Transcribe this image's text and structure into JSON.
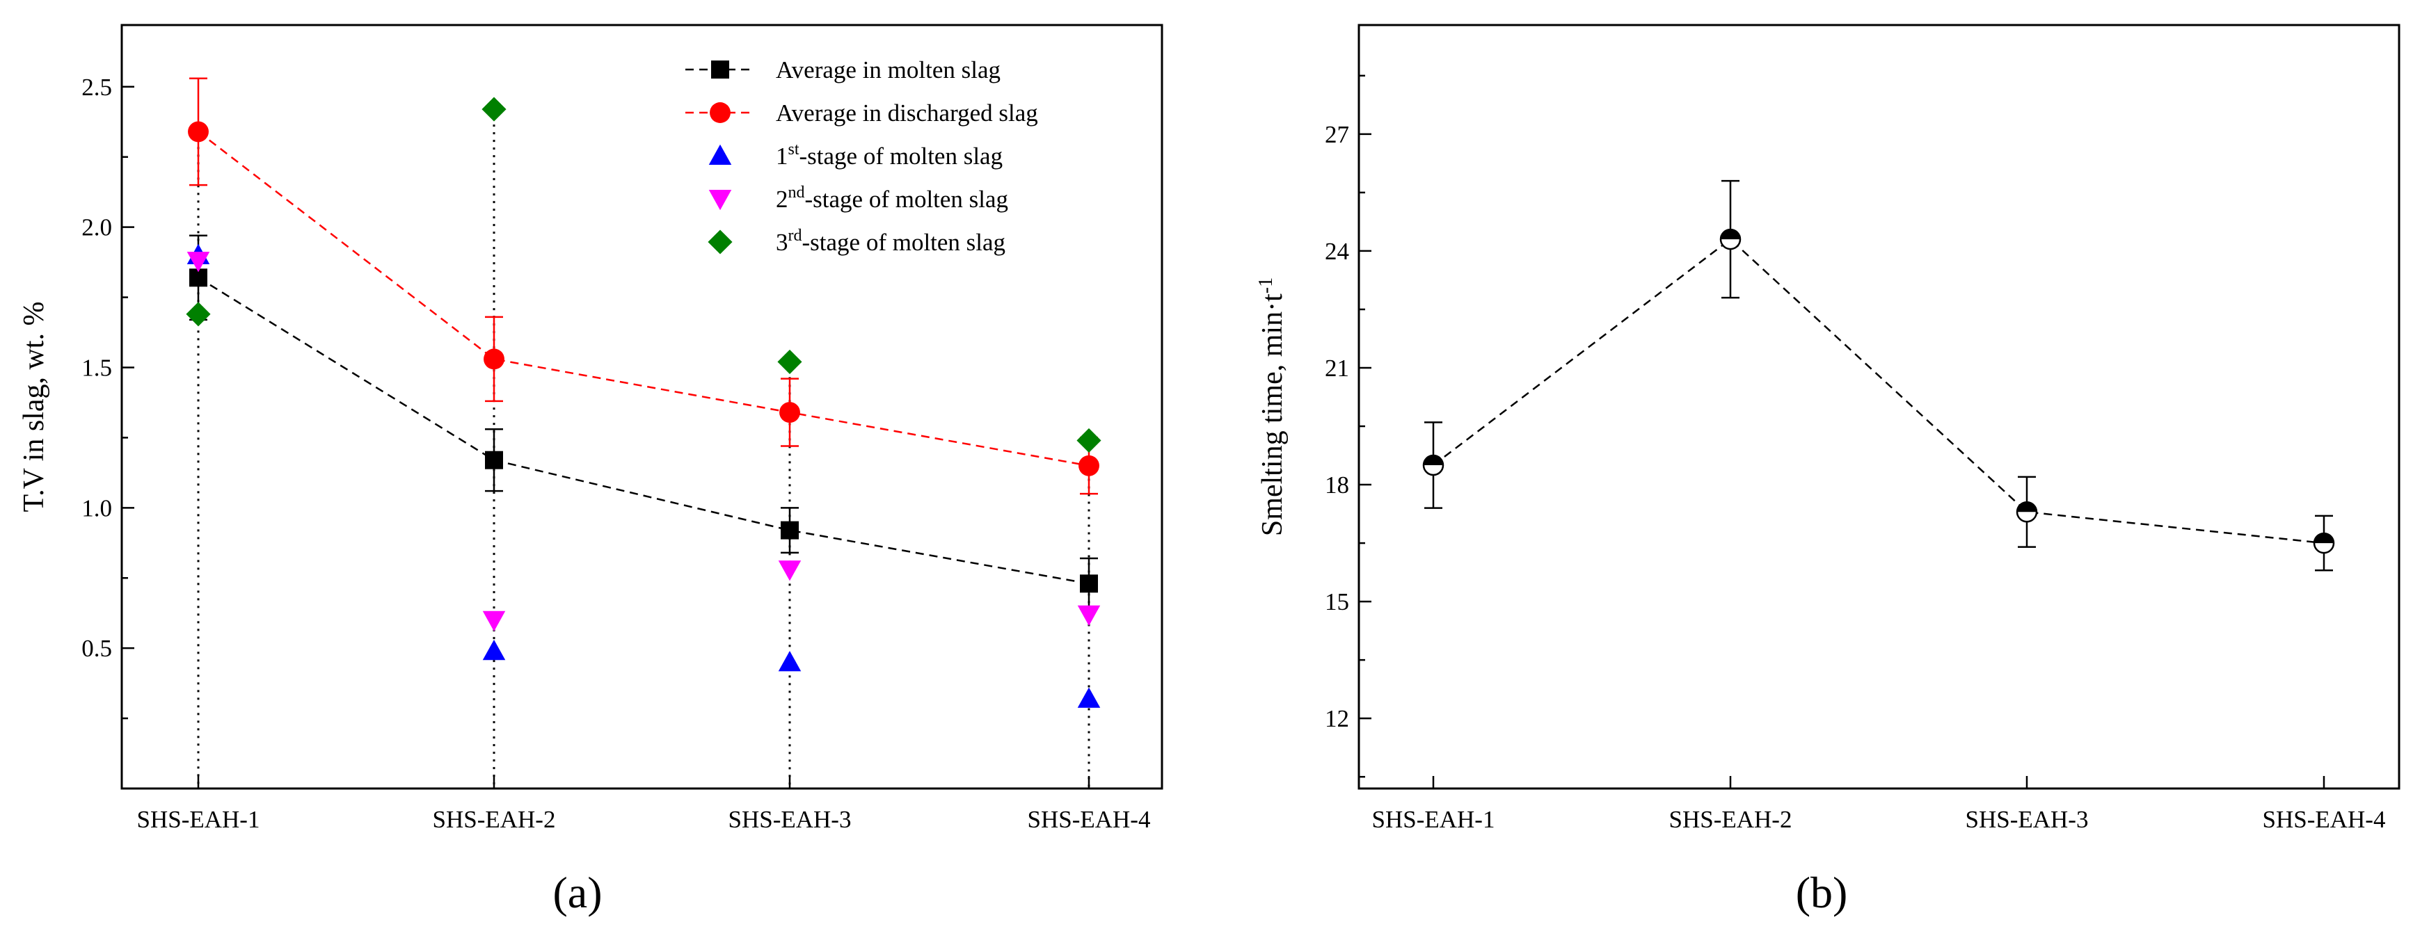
{
  "chart_data": [
    {
      "type": "scatter",
      "panel_label": "(a)",
      "categories": [
        "SHS-EAH-1",
        "SHS-EAH-2",
        "SHS-EAH-3",
        "SHS-EAH-4"
      ],
      "xlabel": "",
      "ylabel": "T.V in slag, wt. %",
      "ylim": [
        0,
        2.72
      ],
      "yticks": [
        "0.5",
        "1.0",
        "1.5",
        "2.0",
        "2.5"
      ],
      "legend_position": "top-right",
      "dotted_vertical_lines": true,
      "series": [
        {
          "key": "molten",
          "name": "Average in molten slag",
          "color": "#000000",
          "marker": "square",
          "line": "dashed",
          "values": [
            1.82,
            1.17,
            0.92,
            0.73
          ],
          "err_low": [
            1.67,
            1.06,
            0.84,
            0.64
          ],
          "err_high": [
            1.97,
            1.28,
            1.0,
            0.82
          ]
        },
        {
          "key": "discharged",
          "name": "Average in discharged slag",
          "color": "#ff0000",
          "marker": "circle",
          "line": "dashed",
          "values": [
            2.34,
            1.53,
            1.34,
            1.15
          ],
          "err_low": [
            2.15,
            1.38,
            1.22,
            1.05
          ],
          "err_high": [
            2.53,
            1.68,
            1.46,
            1.25
          ]
        },
        {
          "key": "stage1",
          "name_pre": "1",
          "name_sup": "st",
          "name_post": "-stage of molten slag",
          "color": "#0000ff",
          "marker": "triangle-up",
          "values": [
            1.9,
            0.49,
            0.45,
            0.32
          ]
        },
        {
          "key": "stage2",
          "name_pre": "2",
          "name_sup": "nd",
          "name_post": "-stage of molten slag",
          "color": "#ff00ff",
          "marker": "triangle-down",
          "values": [
            1.88,
            0.6,
            0.78,
            0.62
          ]
        },
        {
          "key": "stage3",
          "name_pre": "3",
          "name_sup": "rd",
          "name_post": "-stage of molten slag",
          "color": "#008000",
          "marker": "diamond",
          "values": [
            1.69,
            2.42,
            1.52,
            1.24
          ]
        }
      ]
    },
    {
      "type": "line",
      "panel_label": "(b)",
      "categories": [
        "SHS-EAH-1",
        "SHS-EAH-2",
        "SHS-EAH-3",
        "SHS-EAH-4"
      ],
      "xlabel": "",
      "ylabel_main": "Smelting time, min·t",
      "ylabel_sup": "-1",
      "ylim": [
        10.2,
        29.8
      ],
      "yticks": [
        "12",
        "15",
        "18",
        "21",
        "24",
        "27"
      ],
      "series": [
        {
          "name": "Smelting time",
          "marker": "half-filled-circle",
          "line": "dashed",
          "color": "#000000",
          "values": [
            18.5,
            24.3,
            17.3,
            16.5
          ],
          "err_low": [
            17.4,
            22.8,
            16.4,
            15.8
          ],
          "err_high": [
            19.6,
            25.8,
            18.2,
            17.2
          ]
        }
      ]
    }
  ]
}
